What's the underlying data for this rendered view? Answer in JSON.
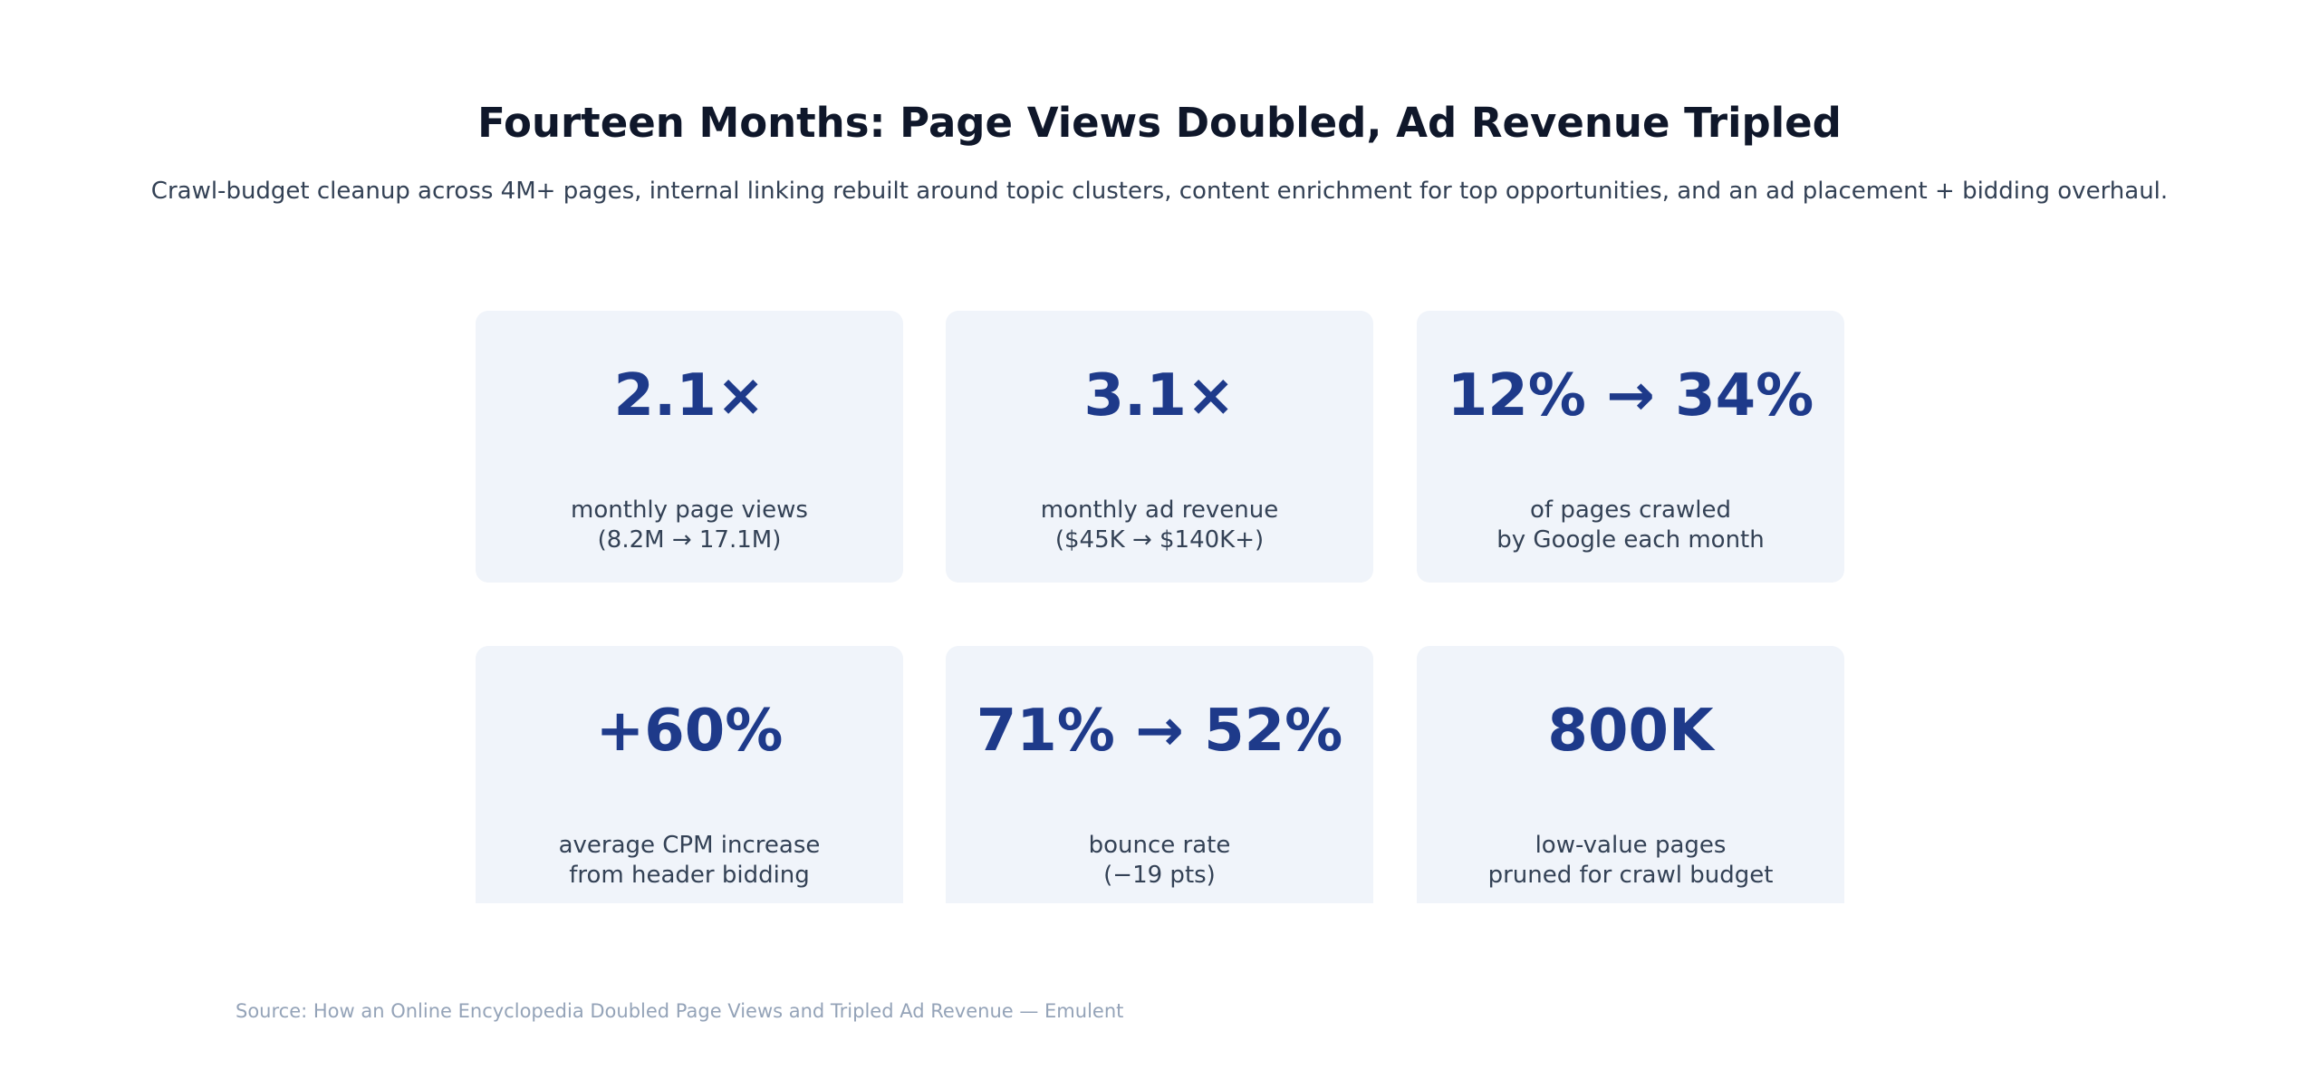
{
  "header": {
    "title": "Fourteen Months: Page Views Doubled, Ad Revenue Tripled",
    "subtitle": "Crawl-budget cleanup across 4M+ pages, internal linking rebuilt around topic clusters, content enrichment for top opportunities, and an ad placement + bidding overhaul."
  },
  "stats": [
    {
      "value": "2.1×",
      "label_line1": "monthly page views",
      "label_line2": "(8.2M → 17.1M)"
    },
    {
      "value": "3.1×",
      "label_line1": "monthly ad revenue",
      "label_line2": "($45K → $140K+)"
    },
    {
      "value": "12% → 34%",
      "label_line1": "of pages crawled",
      "label_line2": "by Google each month"
    },
    {
      "value": "+60%",
      "label_line1": "average CPM increase",
      "label_line2": "from header bidding"
    },
    {
      "value": "71% → 52%",
      "label_line1": "bounce rate",
      "label_line2": "(−19 pts)"
    },
    {
      "value": "800K",
      "label_line1": "low-value pages",
      "label_line2": "pruned for crawl budget"
    }
  ],
  "footer": {
    "source": "Source: How an Online Encyclopedia Doubled Page Views and Tripled Ad Revenue — Emulent"
  },
  "colors": {
    "title": "#0f172a",
    "value": "#1e3a8a",
    "label": "#334155",
    "card_bg": "#f0f4fa",
    "source": "#94a3b8"
  }
}
